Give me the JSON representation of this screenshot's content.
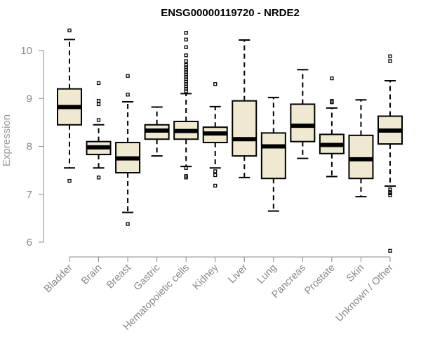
{
  "chart_data": {
    "type": "boxplot",
    "title": "ENSG00000119720 - NRDE2",
    "xlabel": "",
    "ylabel": "Expression",
    "ylim": [
      5.9,
      10.4
    ],
    "yticks": [
      6,
      7,
      8,
      9,
      10
    ],
    "categories": [
      "Bladder",
      "Brain",
      "Breast",
      "Gastric",
      "Hematopoietic cells",
      "Kidney",
      "Liver",
      "Lung",
      "Pancreas",
      "Prostate",
      "Skin",
      "Unknown / Other"
    ],
    "series": [
      {
        "name": "Bladder",
        "min": 7.55,
        "q1": 8.45,
        "median": 8.82,
        "q3": 9.2,
        "max": 10.23,
        "outliers": [
          10.42,
          7.28
        ]
      },
      {
        "name": "Brain",
        "min": 7.55,
        "q1": 7.83,
        "median": 7.98,
        "q3": 8.1,
        "max": 8.45,
        "outliers": [
          9.32,
          8.95,
          8.88,
          8.55,
          7.35
        ]
      },
      {
        "name": "Breast",
        "min": 6.62,
        "q1": 7.45,
        "median": 7.75,
        "q3": 8.08,
        "max": 8.93,
        "outliers": [
          9.47,
          9.08,
          6.38
        ]
      },
      {
        "name": "Gastric",
        "min": 7.8,
        "q1": 8.15,
        "median": 8.33,
        "q3": 8.45,
        "max": 8.82,
        "outliers": []
      },
      {
        "name": "Hematopoietic cells",
        "min": 7.58,
        "q1": 8.15,
        "median": 8.32,
        "q3": 8.52,
        "max": 9.1,
        "outliers": [
          10.37,
          10.23,
          10.07,
          9.9,
          9.78,
          9.7,
          9.65,
          9.6,
          9.55,
          9.5,
          9.45,
          9.4,
          9.35,
          9.3,
          9.25,
          9.2,
          9.15,
          7.55,
          7.38,
          7.35
        ]
      },
      {
        "name": "Kidney",
        "min": 7.55,
        "q1": 8.08,
        "median": 8.27,
        "q3": 8.4,
        "max": 8.83,
        "outliers": [
          9.3,
          7.48,
          7.4,
          7.18
        ]
      },
      {
        "name": "Liver",
        "min": 7.35,
        "q1": 7.8,
        "median": 8.15,
        "q3": 8.95,
        "max": 10.22,
        "outliers": []
      },
      {
        "name": "Lung",
        "min": 6.65,
        "q1": 7.33,
        "median": 8.0,
        "q3": 8.28,
        "max": 9.02,
        "outliers": []
      },
      {
        "name": "Pancreas",
        "min": 7.75,
        "q1": 8.1,
        "median": 8.43,
        "q3": 8.88,
        "max": 9.6,
        "outliers": []
      },
      {
        "name": "Prostate",
        "min": 7.37,
        "q1": 7.85,
        "median": 8.03,
        "q3": 8.25,
        "max": 8.8,
        "outliers": [
          9.42,
          8.95,
          8.92
        ]
      },
      {
        "name": "Skin",
        "min": 6.95,
        "q1": 7.33,
        "median": 7.73,
        "q3": 8.23,
        "max": 8.97,
        "outliers": []
      },
      {
        "name": "Unknown / Other",
        "min": 7.17,
        "q1": 8.05,
        "median": 8.33,
        "q3": 8.63,
        "max": 9.37,
        "outliers": [
          9.88,
          9.78,
          7.1,
          7.05,
          7.02,
          6.98,
          5.82
        ]
      }
    ]
  }
}
